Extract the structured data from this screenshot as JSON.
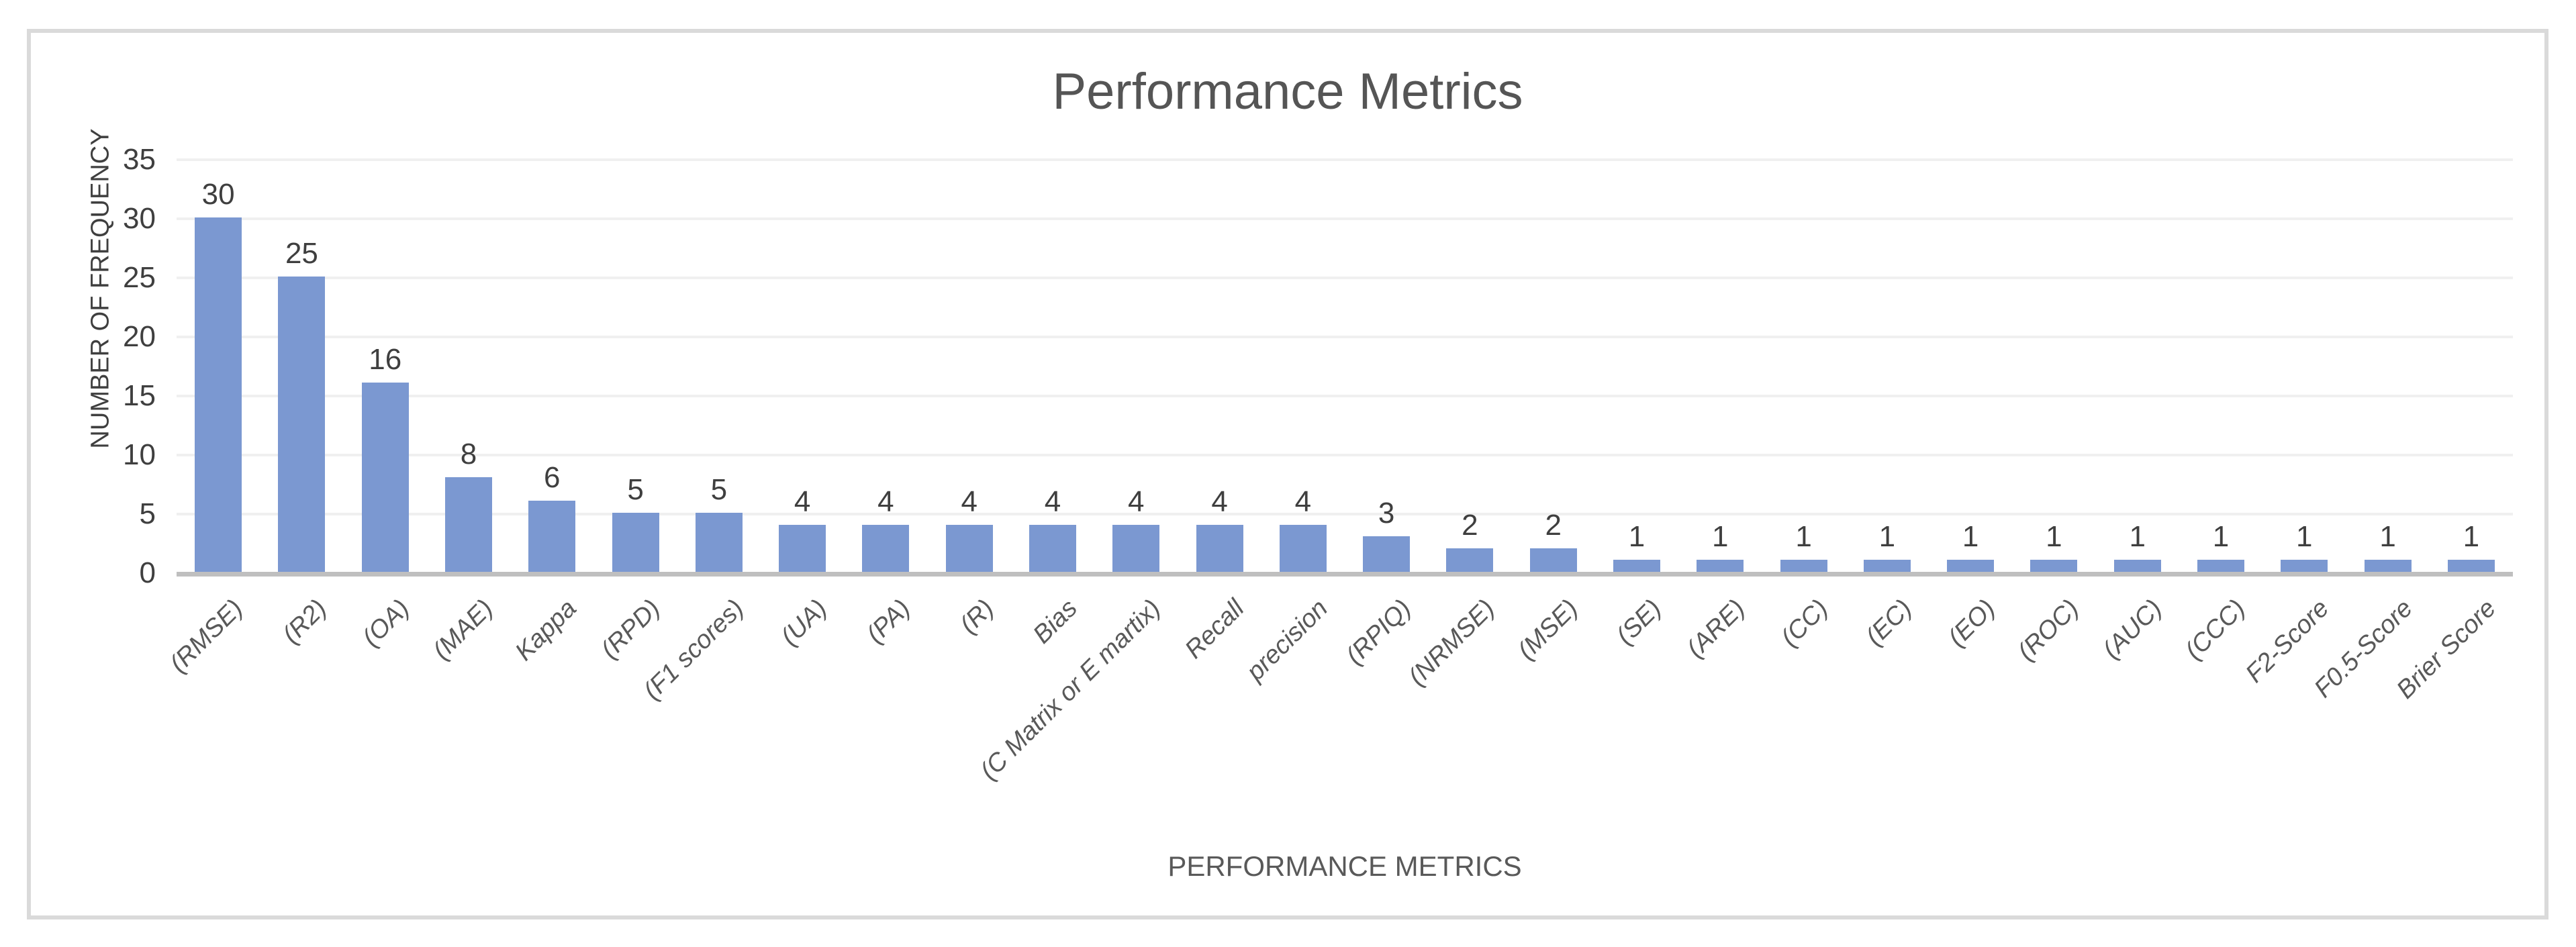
{
  "chart_data": {
    "type": "bar",
    "title": "Performance Metrics",
    "xlabel": "PERFORMANCE METRICS",
    "ylabel": "NUMBER OF FREQUENCY",
    "categories": [
      "(RMSE)",
      "(R2)",
      "(OA)",
      "(MAE)",
      "Kappa",
      "(RPD)",
      "(F1 scores)",
      "(UA)",
      "(PA)",
      "(R)",
      "Bias",
      "(C Matrix or E martix)",
      "Recall",
      "precision",
      "(RPIQ)",
      "(NRMSE)",
      "(MSE)",
      "(SE)",
      "(ARE)",
      "(CC)",
      "(EC)",
      "(EO)",
      "(ROC)",
      "(AUC)",
      "(CCC)",
      "F2-Score",
      "F0.5-Score",
      "Brier Score"
    ],
    "values": [
      30,
      25,
      16,
      8,
      6,
      5,
      5,
      4,
      4,
      4,
      4,
      4,
      4,
      4,
      3,
      2,
      2,
      1,
      1,
      1,
      1,
      1,
      1,
      1,
      1,
      1,
      1,
      1
    ],
    "data_labels_shown": true,
    "ylim": [
      0,
      35
    ],
    "yticks": [
      0,
      5,
      10,
      15,
      20,
      25,
      30,
      35
    ],
    "grid": "horizontal",
    "legend": "none",
    "colors": {
      "bar": "#7b98d1",
      "gridline": "#f0f0f0",
      "axis_line": "#bfbfbf",
      "title_text": "#555555",
      "tick_text": "#3f3f3f",
      "category_text": "#595959",
      "card_border": "#dadada"
    }
  }
}
